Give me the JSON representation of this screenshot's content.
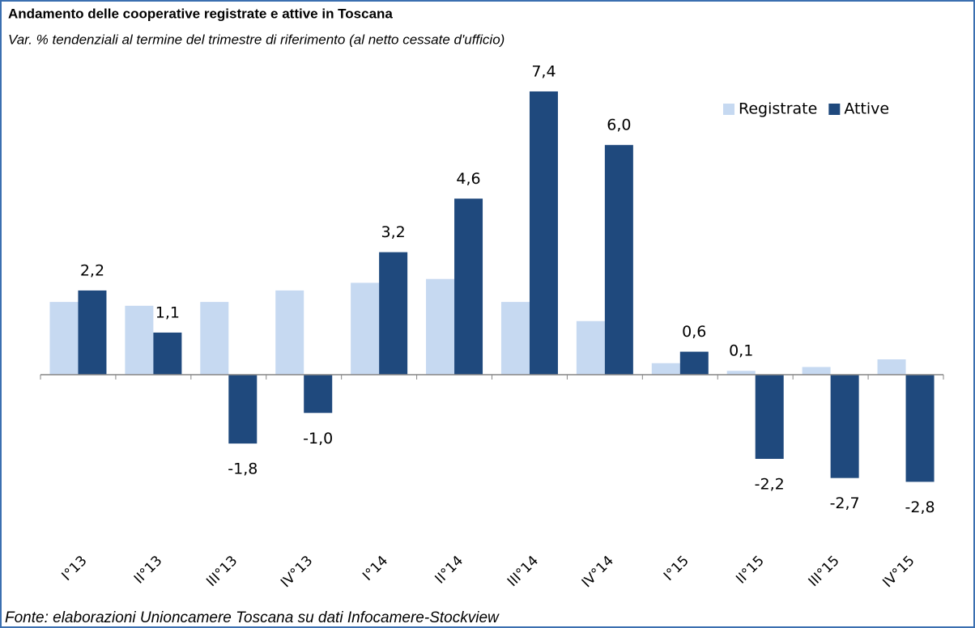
{
  "chart_data": {
    "type": "bar",
    "title": "Andamento delle cooperative registrate e attive in Toscana",
    "subtitle": "Var. % tendenziali al termine del trimestre di riferimento (al netto cessate d'ufficio)",
    "source": "Fonte: elaborazioni Unioncamere Toscana su dati Infocamere-Stockview",
    "categories": [
      "I°13",
      "II°13",
      "III°13",
      "IV°13",
      "I°14",
      "II°14",
      "III°14",
      "IV°14",
      "I°15",
      "II°15",
      "III°15",
      "IV°15"
    ],
    "series": [
      {
        "name": "Registrate",
        "color": "#c6d9f1",
        "values": [
          1.9,
          1.8,
          1.9,
          2.2,
          2.4,
          2.5,
          1.9,
          1.4,
          0.3,
          0.1,
          0.2,
          0.4
        ],
        "value_labels": [
          null,
          null,
          null,
          null,
          null,
          null,
          null,
          null,
          null,
          "0,1",
          null,
          null
        ]
      },
      {
        "name": "Attive",
        "color": "#1f497d",
        "values": [
          2.2,
          1.1,
          -1.8,
          -1.0,
          3.2,
          4.6,
          7.4,
          6.0,
          0.6,
          -2.2,
          -2.7,
          -2.8
        ],
        "value_labels": [
          "2,2",
          "1,1",
          "-1,8",
          "-1,0",
          "3,2",
          "4,6",
          "7,4",
          "6,0",
          "0,6",
          "-2,2",
          "-2,7",
          "-2,8"
        ]
      }
    ],
    "ylim": [
      -3.5,
      8
    ],
    "legend": "top-right"
  }
}
